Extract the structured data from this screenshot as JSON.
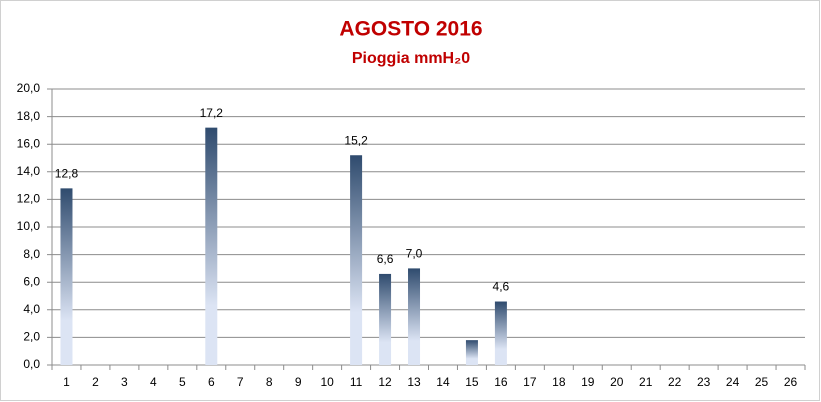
{
  "chart_data": {
    "type": "bar",
    "title": "AGOSTO 2016",
    "subtitle": "Pioggia mmH₂0",
    "categories": [
      "1",
      "2",
      "3",
      "4",
      "5",
      "6",
      "7",
      "8",
      "9",
      "10",
      "11",
      "12",
      "13",
      "14",
      "15",
      "16",
      "17",
      "18",
      "19",
      "20",
      "21",
      "22",
      "23",
      "24",
      "25",
      "26"
    ],
    "values": [
      12.8,
      0,
      0,
      0,
      0,
      17.2,
      0,
      0,
      0,
      0,
      15.2,
      6.6,
      7.0,
      0,
      1.8,
      4.6,
      0,
      0,
      0,
      0,
      0,
      0,
      0,
      0,
      0,
      0
    ],
    "value_labels": [
      "12,8",
      null,
      null,
      null,
      null,
      "17,2",
      null,
      null,
      null,
      null,
      "15,2",
      "6,6",
      "7,0",
      null,
      null,
      "4,6",
      null,
      null,
      null,
      null,
      null,
      null,
      null,
      null,
      null,
      null
    ],
    "color": "#2f4b6e",
    "ylim": [
      0,
      20
    ],
    "yticks": [
      {
        "value": 0,
        "label": "0,0"
      },
      {
        "value": 2,
        "label": "2,0"
      },
      {
        "value": 4,
        "label": "4,0"
      },
      {
        "value": 6,
        "label": "6,0"
      },
      {
        "value": 8,
        "label": "8,0"
      },
      {
        "value": 10,
        "label": "10,0"
      },
      {
        "value": 12,
        "label": "12,0"
      },
      {
        "value": 14,
        "label": "14,0"
      },
      {
        "value": 16,
        "label": "16,0"
      },
      {
        "value": 18,
        "label": "18,0"
      },
      {
        "value": 20,
        "label": "20,0"
      }
    ],
    "grid": true
  }
}
